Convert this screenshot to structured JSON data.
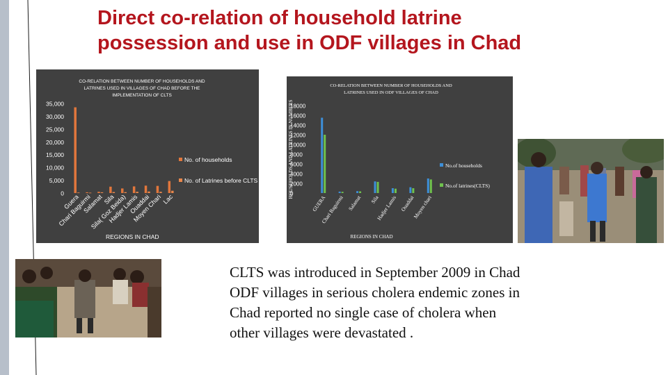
{
  "slide": {
    "title_lines": [
      "Direct co-relation of household latrine",
      "possession and use in ODF villages in Chad"
    ],
    "caption_lines": [
      "CLTS was introduced in September 2009 in Chad",
      "ODF villages in serious cholera endemic zones in",
      "Chad reported no single case of cholera when",
      "other villages were devastated ."
    ]
  },
  "colors": {
    "title": "#b4161e",
    "panel_bg": "#404040",
    "households": "#e2773c",
    "latrines_before": "#e8874c",
    "households_after": "#3d8fd8",
    "latrines_clts": "#6fc24e"
  },
  "chart_data": [
    {
      "type": "bar",
      "title_lines": [
        "CO-RELATION BETWEEN NUMBER OF HOUSEHOLDS AND",
        "LATRINES USED IN  VILLAGES OF CHAD BEFORE THE",
        "IMPLEMENTATION OF CLTS"
      ],
      "xlabel": "REGIONS IN CHAD",
      "ylabel": "",
      "ylim": [
        0,
        35000
      ],
      "yticks": [
        "35,000",
        "30,000",
        "25,000",
        "20,000",
        "15,000",
        "10,000",
        "5,000",
        "0"
      ],
      "ytick_values": [
        35000,
        30000,
        25000,
        20000,
        15000,
        10000,
        5000,
        0
      ],
      "categories": [
        "Guera",
        "Chari Baguirmi",
        "Salamat",
        "Sila",
        "Sila( Goz Beida)",
        "Hadjer Lamis",
        "Ouaddai",
        "Moyen Chari",
        "Lac"
      ],
      "series": [
        {
          "name": "No. of households",
          "values": [
            33500,
            300,
            500,
            2500,
            1800,
            2600,
            2900,
            2800,
            4700
          ]
        },
        {
          "name": "No. of Latrines before CLTS",
          "values": [
            200,
            150,
            300,
            400,
            350,
            500,
            600,
            500,
            900
          ]
        }
      ],
      "legend": "right",
      "grid": false
    },
    {
      "type": "bar",
      "title_lines": [
        "CO-RELATION BETWEEN NUMBER OF HOUSEHOLDS AND",
        "LATRINES USED IN ODF VILLAGES OF CHAD"
      ],
      "xlabel": "REGIONS IN CHAD",
      "ylabel": "HOUSEHOLDS AND LATRINES IN NUMBERS",
      "ylim": [
        0,
        18000
      ],
      "yticks": [
        "18000",
        "16000",
        "14000",
        "12000",
        "10000",
        "8000",
        "6000",
        "4000",
        "2000",
        "0"
      ],
      "ytick_values": [
        18000,
        16000,
        14000,
        12000,
        10000,
        8000,
        6000,
        4000,
        2000,
        0
      ],
      "categories": [
        "GUERA",
        "Chari Baguirmi",
        "Salamat",
        "Sila",
        "Hadjer Lamis",
        "Ouaddai",
        "Moyen chari"
      ],
      "series": [
        {
          "name": "No.of households",
          "values": [
            15500,
            300,
            400,
            2400,
            1000,
            1200,
            3000
          ]
        },
        {
          "name": "No.of latrines(CLTS)",
          "values": [
            12000,
            250,
            350,
            2300,
            900,
            1000,
            2800
          ]
        }
      ],
      "legend": "right",
      "grid": false
    }
  ]
}
